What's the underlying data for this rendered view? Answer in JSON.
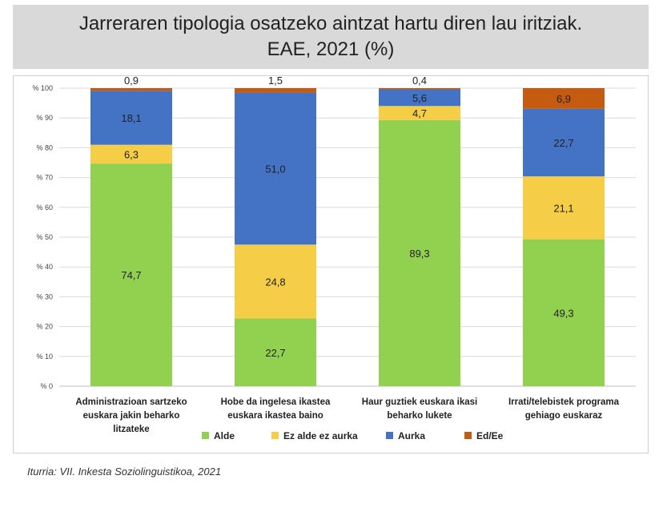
{
  "title": {
    "line1": "Jarreraren tipologia osatzeko aintzat hartu diren lau iritziak.",
    "line2": "EAE, 2021 (%)"
  },
  "source": "Iturria: VII. Inkesta Soziolinguistikoa, 2021",
  "colors": {
    "Alde": "#92d050",
    "Ez alde ez aurka": "#f5cd47",
    "Aurka": "#4472c4",
    "Ed/Ee": "#c55a11"
  },
  "chart_data": {
    "type": "bar",
    "stacked": true,
    "categories": [
      [
        "Administrazioan sartzeko",
        "euskara jakin beharko",
        "litzateke"
      ],
      [
        "Hobe da ingelesa ikastea",
        "euskara ikastea baino"
      ],
      [
        "Haur guztiek euskara ikasi",
        "beharko lukete"
      ],
      [
        "Irrati/telebistek programa",
        "gehiago euskaraz"
      ]
    ],
    "series": [
      {
        "name": "Alde",
        "values": [
          74.7,
          22.7,
          89.3,
          49.3
        ],
        "labels": [
          "74,7",
          "22,7",
          "89,3",
          "49,3"
        ]
      },
      {
        "name": "Ez alde ez aurka",
        "values": [
          6.3,
          24.8,
          4.7,
          21.1
        ],
        "labels": [
          "6,3",
          "24,8",
          "4,7",
          "21,1"
        ]
      },
      {
        "name": "Aurka",
        "values": [
          18.1,
          51.0,
          5.6,
          22.7
        ],
        "labels": [
          "18,1",
          "51,0",
          "5,6",
          "22,7"
        ]
      },
      {
        "name": "Ed/Ee",
        "values": [
          0.9,
          1.5,
          0.4,
          6.9
        ],
        "labels": [
          "0,9",
          "1,5",
          "0,4",
          "6,9"
        ]
      }
    ],
    "yticks": [
      "% 0",
      "% 10",
      "% 20",
      "% 30",
      "% 40",
      "% 50",
      "% 60",
      "% 70",
      "% 80",
      "% 90",
      "% 100"
    ],
    "ylim": [
      0,
      100
    ],
    "grid": true,
    "legend": "bottom"
  }
}
